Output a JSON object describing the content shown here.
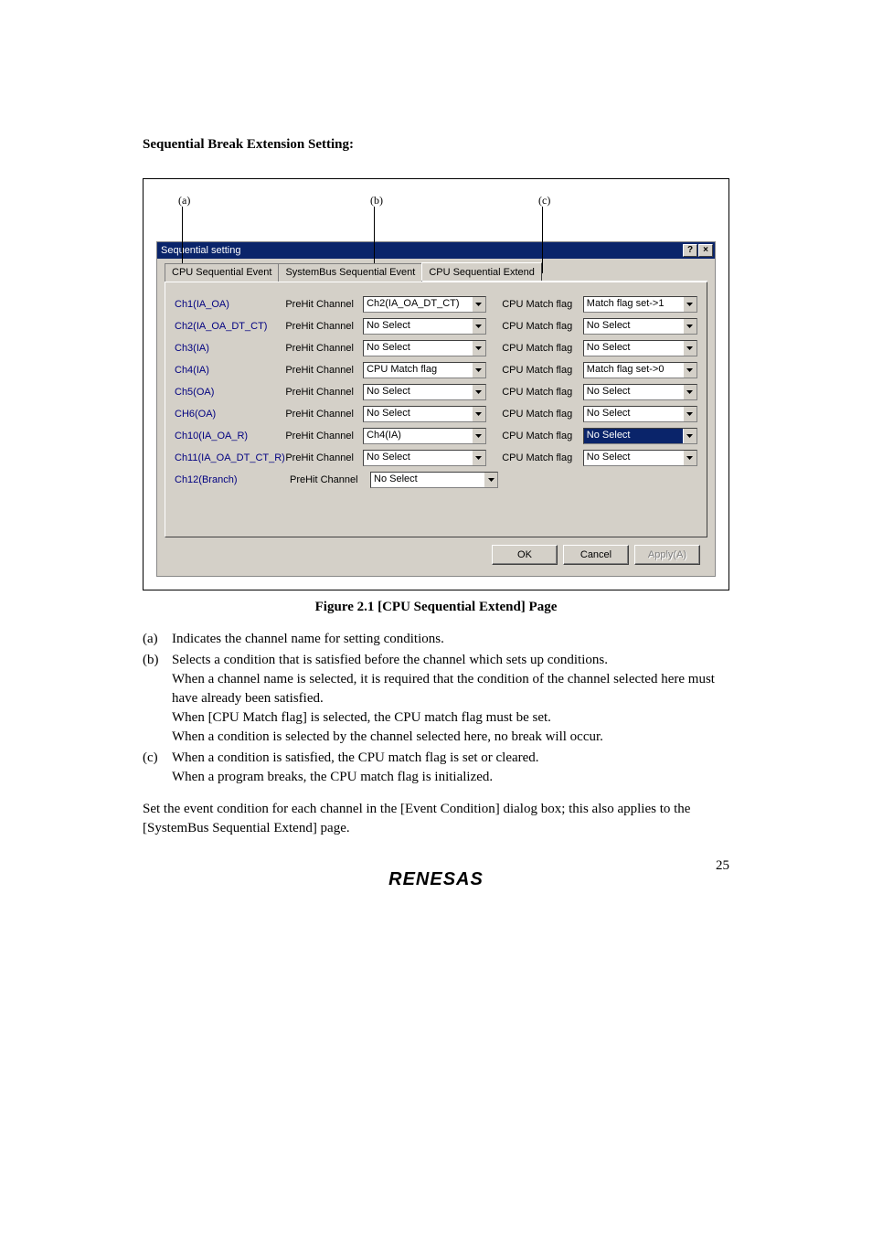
{
  "section_title": "Sequential Break Extension Setting:",
  "indicators": {
    "a": "(a)",
    "b": "(b)",
    "c": "(c)"
  },
  "dialog": {
    "title": "Sequential setting",
    "help_glyph": "?",
    "close_glyph": "×",
    "tabs": {
      "t1": "CPU Sequential Event",
      "t2": "SystemBus Sequential Event",
      "t3": "CPU Sequential Extend"
    },
    "col_prehit": "PreHit Channel",
    "col_matchflag": "CPU Match flag",
    "rows": [
      {
        "ch": "Ch1(IA_OA)",
        "sel1": "Ch2(IA_OA_DT_CT)",
        "has_mf": true,
        "sel2": "Match flag set->1",
        "hl": false
      },
      {
        "ch": "Ch2(IA_OA_DT_CT)",
        "sel1": "No Select",
        "has_mf": true,
        "sel2": "No Select",
        "hl": false
      },
      {
        "ch": "Ch3(IA)",
        "sel1": "No Select",
        "has_mf": true,
        "sel2": "No Select",
        "hl": false
      },
      {
        "ch": "Ch4(IA)",
        "sel1": "CPU Match flag",
        "has_mf": true,
        "sel2": "Match flag set->0",
        "hl": false
      },
      {
        "ch": "Ch5(OA)",
        "sel1": "No Select",
        "has_mf": true,
        "sel2": "No Select",
        "hl": false
      },
      {
        "ch": "CH6(OA)",
        "sel1": "No Select",
        "has_mf": true,
        "sel2": "No Select",
        "hl": false
      },
      {
        "ch": "Ch10(IA_OA_R)",
        "sel1": "Ch4(IA)",
        "has_mf": true,
        "sel2": "No Select",
        "hl": true
      },
      {
        "ch": "Ch11(IA_OA_DT_CT_R)",
        "sel1": "No Select",
        "has_mf": true,
        "sel2": "No Select",
        "hl": false
      },
      {
        "ch": "Ch12(Branch)",
        "sel1": "No Select",
        "has_mf": false
      }
    ],
    "buttons": {
      "ok": "OK",
      "cancel": "Cancel",
      "apply": "Apply(A)"
    }
  },
  "caption": "Figure 2.1   [CPU Sequential Extend] Page",
  "notes": {
    "a": {
      "label": "(a)",
      "lines": [
        "Indicates the channel name for setting conditions."
      ]
    },
    "b": {
      "label": "(b)",
      "lines": [
        "Selects a condition that is satisfied before the channel which sets up conditions.",
        "When a channel name is selected, it is required that the condition of the channel selected here must have already been satisfied.",
        "When [CPU Match flag] is selected, the CPU match flag must be set.",
        "When a condition is selected by the channel selected here, no break will occur."
      ]
    },
    "c": {
      "label": "(c)",
      "lines": [
        "When a condition is satisfied, the CPU match flag is set or cleared.",
        "When a program breaks, the CPU match flag is initialized."
      ]
    }
  },
  "paragraph": "Set the event condition for each channel in the [Event Condition] dialog box; this also applies to the [SystemBus Sequential Extend] page.",
  "logo": "RENESAS",
  "page_number": "25"
}
